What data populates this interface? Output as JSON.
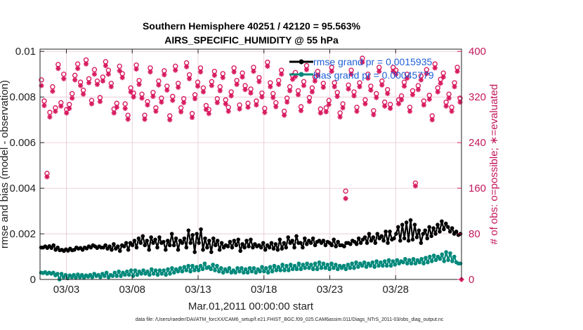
{
  "chart_data": {
    "type": "line",
    "title": "Southern Hemisphere 40251 / 42120 = 95.563%",
    "subtitle": "AIRS_SPECIFIC_HUMIDITY @ 55 hPa",
    "xlabel": "Mar.01,2011 00:00:00 start",
    "ylabel_left": "rmse and bias (model - observation)",
    "ylabel_right": "# of obs: o=possible; ∗=evaluated",
    "footnote": "data file: /Users/raeder/DAI/ATM_forcXX/CAM6_setup/f.e21.FHIST_BGC.f09_025.CAM6assim.011/Diags_NTrS_2011-03/obs_diag_output.nc",
    "x_range_days": [
      1,
      33
    ],
    "x_tick_days": [
      3,
      8,
      13,
      18,
      23,
      28
    ],
    "x_tick_labels": [
      "03/03",
      "03/08",
      "03/13",
      "03/18",
      "03/23",
      "03/28"
    ],
    "ylim_left": [
      0,
      0.0101
    ],
    "y_ticks_left": [
      0,
      0.002,
      0.004,
      0.006,
      0.008,
      0.01
    ],
    "y_tick_labels_left": [
      "0",
      "0.002",
      "0.004",
      "0.006",
      "0.008",
      "0.01"
    ],
    "ylim_right": [
      0,
      404
    ],
    "y_ticks_right": [
      0,
      80,
      160,
      240,
      320,
      400
    ],
    "y_tick_labels_right": [
      "0",
      "80",
      "160",
      "240",
      "320",
      "400"
    ],
    "colors": {
      "rmse": "#000000",
      "bias": "#00897b",
      "count": "#d81b60",
      "grid": "#e7c4cf",
      "legend_text": "#1f5fd6"
    },
    "legend": [
      "rmse grand pr = 0.0015935",
      "bias grand pr = 0.00045779"
    ],
    "series": [
      {
        "name": "rmse",
        "values": [
          0.0014,
          0.0014,
          0.00145,
          0.00138,
          0.00146,
          0.00138,
          0.0015,
          0.0013,
          0.0014,
          0.00128,
          0.0013,
          0.00125,
          0.00132,
          0.00126,
          0.00135,
          0.00128,
          0.0013,
          0.0014,
          0.00135,
          0.00138,
          0.0013,
          0.0014,
          0.00136,
          0.00145,
          0.0014,
          0.0015,
          0.00145,
          0.00138,
          0.00145,
          0.0014,
          0.0014,
          0.0015,
          0.00135,
          0.00145,
          0.0013,
          0.00155,
          0.00135,
          0.00145,
          0.00125,
          0.0015,
          0.00145,
          0.0016,
          0.0013,
          0.0016,
          0.0015,
          0.0017,
          0.0014,
          0.0018,
          0.0016,
          0.0019,
          0.0015,
          0.0017,
          0.0013,
          0.00185,
          0.0016,
          0.00175,
          0.0014,
          0.00185,
          0.0016,
          0.00165,
          0.0013,
          0.0017,
          0.0015,
          0.002,
          0.0015,
          0.0018,
          0.0013,
          0.0017,
          0.0016,
          0.0018,
          0.0014,
          0.00215,
          0.0016,
          0.00195,
          0.0012,
          0.002,
          0.0016,
          0.0022,
          0.0013,
          0.0018,
          0.0014,
          0.0017,
          0.0012,
          0.0018,
          0.0015,
          0.0017,
          0.0013,
          0.0016,
          0.0014,
          0.0015,
          0.00145,
          0.00165,
          0.0014,
          0.0017,
          0.0015,
          0.00175,
          0.00125,
          0.00155,
          0.0014,
          0.0017,
          0.00145,
          0.00175,
          0.0014,
          0.00155,
          0.00145,
          0.0015,
          0.0014,
          0.0016,
          0.0013,
          0.0015,
          0.0014,
          0.0016,
          0.00135,
          0.00155,
          0.0013,
          0.00175,
          0.00135,
          0.0016,
          0.0014,
          0.00185,
          0.0016,
          0.0017,
          0.0014,
          0.0019,
          0.0016,
          0.0016,
          0.0014,
          0.0018,
          0.00155,
          0.0017,
          0.0016,
          0.0018,
          0.0015,
          0.00165,
          0.0017,
          0.0016,
          0.0017,
          0.0015,
          0.00165,
          0.0016,
          0.0015,
          0.00175,
          0.00145,
          0.00165,
          0.0015,
          0.0015,
          0.00145,
          0.0016,
          0.0016,
          0.00155,
          0.0017,
          0.00165,
          0.00155,
          0.0018,
          0.0016,
          0.00175,
          0.00185,
          0.0016,
          0.002,
          0.0017,
          0.00185,
          0.0016,
          0.002,
          0.0018,
          0.0019,
          0.0017,
          0.0021,
          0.0016,
          0.0021,
          0.00175,
          0.0018,
          0.002,
          0.0023,
          0.0017,
          0.0024,
          0.0018,
          0.0025,
          0.0017,
          0.0026,
          0.00175,
          0.0024,
          0.00185,
          0.00215,
          0.0016,
          0.002,
          0.00215,
          0.0018,
          0.0023,
          0.0019,
          0.00225,
          0.002,
          0.0024,
          0.0021,
          0.00255,
          0.0022,
          0.00245,
          0.0023,
          0.0021,
          0.00225,
          0.002,
          0.0021,
          0.00195,
          0.002
        ]
      },
      {
        "name": "bias",
        "values": [
          0.0003,
          0.00028,
          0.00032,
          0.00025,
          0.0003,
          0.00025,
          0.0003,
          0.00018,
          0.00025,
          0.0,
          0.00025,
          0.0001,
          0.0002,
          5e-05,
          0.00018,
          0.0001,
          0.0002,
          8e-05,
          0.00022,
          0.0001,
          0.0002,
          8e-05,
          0.00018,
          0.00012,
          0.0002,
          0.0001,
          0.00025,
          0.00015,
          0.0002,
          0.0001,
          0.00025,
          0.00015,
          0.0003,
          0.0001,
          0.0002,
          0.00015,
          0.0003,
          0.00015,
          0.00035,
          0.00015,
          0.0003,
          0.0002,
          0.00035,
          0.0002,
          0.0004,
          0.00015,
          0.0004,
          0.0002,
          0.00035,
          0.00025,
          0.0004,
          0.00025,
          0.00035,
          0.0002,
          0.00045,
          0.00025,
          0.0004,
          0.0002,
          0.0004,
          0.00025,
          0.0004,
          0.0002,
          0.00045,
          0.00025,
          0.0005,
          0.0003,
          0.00045,
          0.00035,
          0.0005,
          0.00035,
          0.00055,
          0.0004,
          0.0006,
          0.00035,
          0.0006,
          0.0004,
          0.00055,
          0.0004,
          0.0006,
          0.00045,
          0.0007,
          0.0005,
          0.00055,
          0.00045,
          0.00065,
          0.0004,
          0.0006,
          0.00035,
          0.0005,
          0.0003,
          0.00045,
          0.00035,
          0.0005,
          0.0003,
          0.0004,
          0.0003,
          0.0005,
          0.00035,
          0.0005,
          0.0003,
          0.00045,
          0.0003,
          0.0005,
          0.00035,
          0.0005,
          0.0003,
          0.00045,
          0.00035,
          0.00055,
          0.00035,
          0.0005,
          0.0003,
          0.00055,
          0.00035,
          0.0006,
          0.0004,
          0.00055,
          0.0004,
          0.00065,
          0.0004,
          0.0006,
          0.0004,
          0.00065,
          0.00045,
          0.0006,
          0.00045,
          0.0007,
          0.00045,
          0.00065,
          0.0005,
          0.0007,
          0.0005,
          0.00065,
          0.00045,
          0.0007,
          0.00045,
          0.00075,
          0.0005,
          0.0007,
          0.0005,
          0.00065,
          0.00045,
          0.0007,
          0.0005,
          0.00065,
          0.00045,
          0.0006,
          0.0005,
          0.0006,
          0.00045,
          0.00065,
          0.0005,
          0.0007,
          0.0005,
          0.00075,
          0.00055,
          0.0007,
          0.0006,
          0.00075,
          0.00055,
          0.0007,
          0.0006,
          0.00075,
          0.00055,
          0.0008,
          0.0006,
          0.00075,
          0.0006,
          0.0008,
          0.0006,
          0.00085,
          0.0006,
          0.0008,
          0.00065,
          0.00085,
          0.0007,
          0.0008,
          0.00075,
          0.0009,
          0.0007,
          0.00085,
          0.0007,
          0.0009,
          0.0007,
          0.00085,
          0.00075,
          0.0009,
          0.0007,
          0.00095,
          0.00075,
          0.001,
          0.0008,
          0.00105,
          0.00085,
          0.001,
          0.0009,
          0.0011,
          0.0008,
          0.0012,
          0.00085,
          0.00115,
          0.0008,
          0.001,
          0.00075,
          0.0007,
          0.0007
        ]
      },
      {
        "name": "possible",
        "marker": "o",
        "values": [
          350,
          313,
          186,
          293,
          338,
          301,
          377,
          310,
          360,
          298,
          307,
          326,
          358,
          378,
          346,
          332,
          385,
          352,
          314,
          368,
          348,
          319,
          355,
          382,
          367,
          344,
          299,
          309,
          374,
          361,
          308,
          288,
          336,
          327,
          376,
          349,
          325,
          288,
          312,
          371,
          328,
          301,
          348,
          318,
          366,
          339,
          287,
          321,
          374,
          344,
          301,
          317,
          380,
          359,
          291,
          324,
          346,
          371,
          336,
          305,
          298,
          347,
          365,
          317,
          338,
          361,
          315,
          302,
          329,
          371,
          349,
          306,
          362,
          340,
          309,
          334,
          372,
          313,
          354,
          327,
          300,
          381,
          345,
          326,
          310,
          349,
          367,
          295,
          318,
          338,
          358,
          363,
          331,
          303,
          347,
          375,
          319,
          336,
          355,
          365,
          299,
          344,
          301,
          314,
          372,
          345,
          328,
          292,
          308,
          155,
          341,
          367,
          329,
          302,
          345,
          388,
          315,
          360,
          339,
          296,
          326,
          372,
          348,
          311,
          333,
          307,
          372,
          367,
          315,
          322,
          346,
          360,
          302,
          331,
          169,
          340,
          357,
          313,
          368,
          323,
          287,
          378,
          336,
          351,
          362,
          311,
          325,
          302,
          345,
          372,
          318
        ]
      },
      {
        "name": "evaluated",
        "marker": "*",
        "values": [
          340,
          305,
          180,
          285,
          330,
          295,
          370,
          304,
          352,
          292,
          300,
          318,
          350,
          370,
          340,
          325,
          378,
          345,
          308,
          360,
          342,
          312,
          348,
          375,
          360,
          338,
          292,
          302,
          366,
          354,
          300,
          281,
          329,
          320,
          369,
          342,
          318,
          281,
          306,
          364,
          321,
          295,
          341,
          311,
          359,
          332,
          280,
          314,
          367,
          337,
          294,
          310,
          373,
          352,
          284,
          317,
          339,
          364,
          329,
          298,
          291,
          340,
          358,
          310,
          331,
          354,
          308,
          295,
          322,
          364,
          342,
          299,
          355,
          333,
          302,
          327,
          365,
          306,
          347,
          320,
          293,
          374,
          338,
          319,
          303,
          342,
          360,
          288,
          311,
          331,
          351,
          356,
          324,
          296,
          340,
          368,
          312,
          329,
          348,
          358,
          292,
          337,
          294,
          307,
          365,
          338,
          321,
          285,
          301,
          142,
          334,
          360,
          322,
          295,
          338,
          381,
          308,
          353,
          332,
          289,
          319,
          365,
          341,
          304,
          326,
          300,
          365,
          360,
          308,
          315,
          339,
          353,
          295,
          324,
          164,
          333,
          350,
          306,
          361,
          316,
          280,
          371,
          329,
          344,
          355,
          304,
          318,
          295,
          338,
          365,
          311
        ]
      }
    ],
    "end_marker_value": 0
  }
}
